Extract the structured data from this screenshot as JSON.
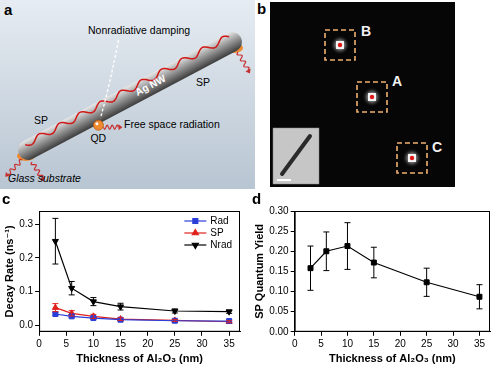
{
  "chart_data": [
    {
      "type": "line",
      "title": "c",
      "x_label": "Thickness of Al₂O₃ (nm)",
      "y_label": "Decay Rate (ns⁻¹)",
      "x": [
        3,
        6,
        10,
        15,
        25,
        35
      ],
      "xlim": [
        0,
        37
      ],
      "xticks": [
        0,
        5,
        10,
        15,
        20,
        25,
        30,
        35
      ],
      "ylim": [
        -0.02,
        0.34
      ],
      "yticks": [
        {
          "value": 0,
          "label": "0.0"
        },
        0.1,
        0.2,
        0.3
      ],
      "grid": false,
      "legend": "upper right",
      "series": [
        {
          "name": "Rad",
          "color": "#2a3fd8",
          "marker": "square",
          "values": [
            0.033,
            0.026,
            0.021,
            0.016,
            0.013,
            0.012
          ],
          "errors": [
            0.005,
            0.004,
            0.004,
            0.003,
            0.003,
            0.003
          ]
        },
        {
          "name": "SP",
          "color": "#e0201c",
          "marker": "triangle",
          "values": [
            0.052,
            0.035,
            0.026,
            0.018,
            0.014,
            0.01
          ],
          "errors": [
            0.012,
            0.008,
            0.006,
            0.004,
            0.003,
            0.003
          ]
        },
        {
          "name": "Nrad",
          "color": "#000000",
          "marker": "triangle_down",
          "values": [
            0.25,
            0.11,
            0.07,
            0.055,
            0.042,
            0.04
          ],
          "errors": [
            0.068,
            0.02,
            0.012,
            0.01,
            0.006,
            0.005
          ]
        }
      ]
    },
    {
      "type": "line",
      "title": "d",
      "x_label": "Thickness of Al₂O₃ (nm)",
      "y_label": "SP Quantum Yield",
      "x": [
        3,
        6,
        10,
        15,
        25,
        35
      ],
      "xlim": [
        0,
        37
      ],
      "xticks": [
        0,
        5,
        10,
        15,
        20,
        25,
        30,
        35
      ],
      "ylim": [
        0,
        0.3
      ],
      "yticks": [
        {
          "value": 0,
          "label": "0.00"
        },
        0.05,
        {
          "value": 0.1,
          "label": "0.10"
        },
        0.15,
        {
          "value": 0.2,
          "label": "0.20"
        },
        0.25,
        {
          "value": 0.3,
          "label": "0.30"
        }
      ],
      "grid": false,
      "series": [
        {
          "color": "#000000",
          "marker": "square",
          "values": [
            0.158,
            0.2,
            0.213,
            0.172,
            0.123,
            0.087
          ],
          "errors": [
            0.055,
            0.048,
            0.058,
            0.038,
            0.035,
            0.03
          ]
        }
      ]
    }
  ],
  "diagram": {
    "label": "a",
    "texts": {
      "nonradiative": "Nonradiative damping",
      "sp_left": "SP",
      "sp_right": "SP",
      "qd": "QD",
      "nanowire": "Ag NW",
      "radiation": "Free space radiation",
      "substrate": "Glass substrate"
    }
  },
  "image": {
    "label": "b",
    "spots": {
      "A": "A",
      "B": "B",
      "C": "C"
    }
  }
}
